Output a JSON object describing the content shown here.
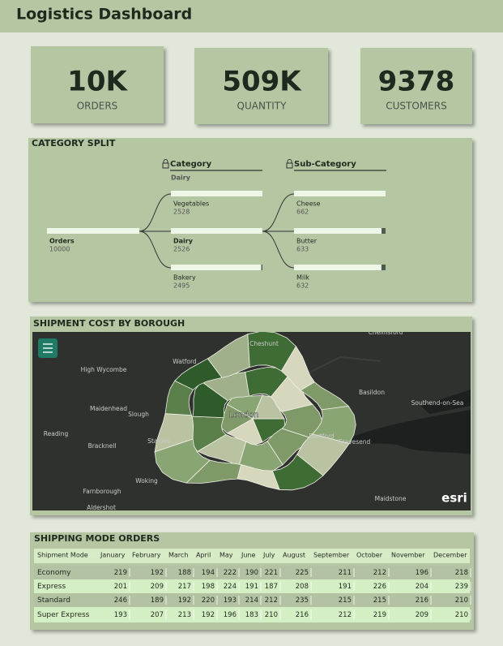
{
  "header": {
    "title": "Logistics Dashboard"
  },
  "kpis": [
    {
      "value": "10K",
      "label": "ORDERS"
    },
    {
      "value": "509K",
      "label": "QUANTITY"
    },
    {
      "value": "9378",
      "label": "CUSTOMERS"
    }
  ],
  "category_split": {
    "title": "CATEGORY SPLIT",
    "levels": [
      {
        "name": "Category",
        "filter": "Dairy"
      },
      {
        "name": "Sub-Category"
      }
    ],
    "root": {
      "label": "Orders",
      "value": 10000
    },
    "categories": [
      {
        "label": "Vegetables",
        "value": 2528
      },
      {
        "label": "Dairy",
        "value": 2526
      },
      {
        "label": "Bakery",
        "value": 2495
      }
    ],
    "subcategories": [
      {
        "label": "Cheese",
        "value": 662
      },
      {
        "label": "Butter",
        "value": 633
      },
      {
        "label": "Milk",
        "value": 632
      }
    ]
  },
  "map": {
    "title": "SHIPMENT COST BY BOROUGH",
    "places": [
      "Chelmsford",
      "Cheshunt",
      "Watford",
      "High Wycombe",
      "Basildon",
      "Southend-on-Sea",
      "Maidenhead",
      "Slough",
      "London",
      "Reading",
      "Bracknell",
      "Staines",
      "Dartford",
      "Gravesend",
      "Woking",
      "Farnborough",
      "Maidstone",
      "Aldershot"
    ],
    "attribution": "esri"
  },
  "table": {
    "title": "SHIPPING MODE ORDERS",
    "columns": [
      "Shipment Mode",
      "January",
      "February",
      "March",
      "April",
      "May",
      "June",
      "July",
      "August",
      "September",
      "October",
      "November",
      "December"
    ],
    "rows": [
      [
        "Economy",
        219,
        192,
        188,
        194,
        222,
        190,
        221,
        225,
        211,
        212,
        196,
        218
      ],
      [
        "Express",
        201,
        209,
        217,
        198,
        224,
        191,
        187,
        208,
        191,
        226,
        204,
        239
      ],
      [
        "Standard",
        246,
        189,
        192,
        220,
        193,
        214,
        212,
        235,
        215,
        215,
        216,
        210
      ],
      [
        "Super Express",
        193,
        207,
        213,
        192,
        196,
        183,
        210,
        216,
        212,
        219,
        209,
        210
      ]
    ]
  }
}
